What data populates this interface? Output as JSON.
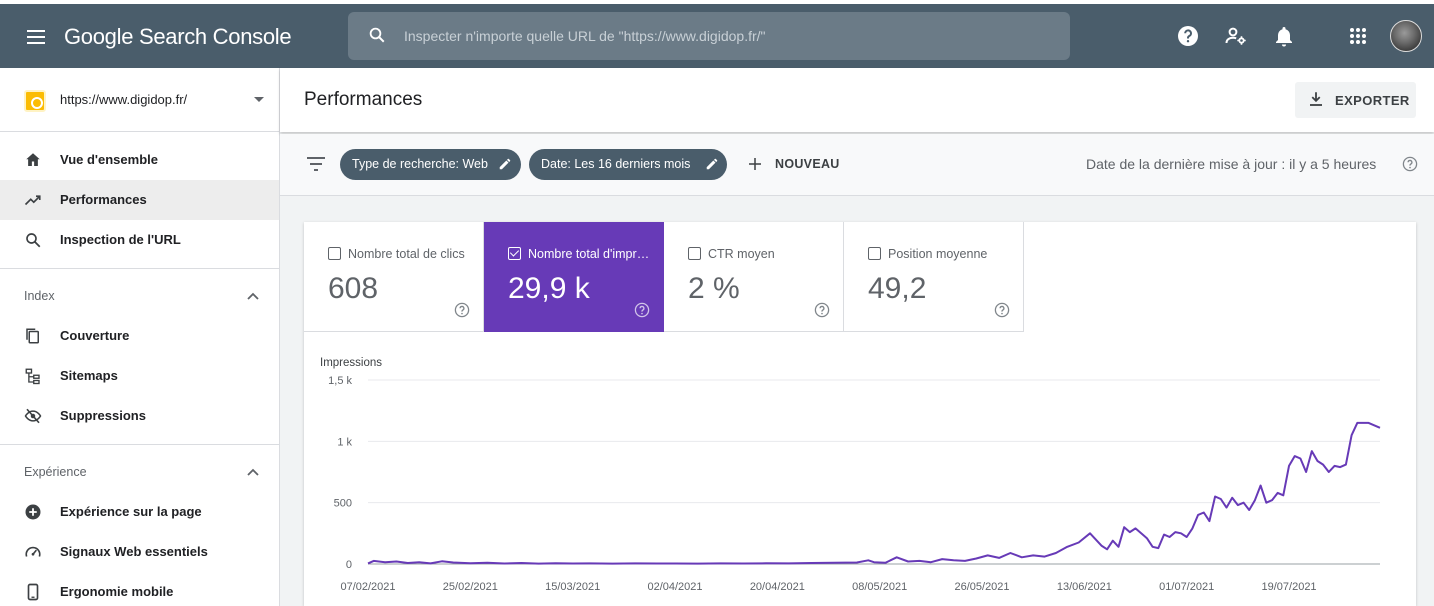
{
  "app": {
    "logo": "Google Search Console"
  },
  "search": {
    "placeholder": "Inspecter n'importe quelle URL de \"https://www.digidop.fr/\""
  },
  "property": {
    "label": "https://www.digidop.fr/"
  },
  "sidebar": {
    "items": [
      {
        "label": "Vue d'ensemble",
        "icon": "home-icon"
      },
      {
        "label": "Performances",
        "icon": "trending-icon"
      },
      {
        "label": "Inspection de l'URL",
        "icon": "search-icon"
      }
    ],
    "index": {
      "title": "Index",
      "items": [
        {
          "label": "Couverture",
          "icon": "pages-icon"
        },
        {
          "label": "Sitemaps",
          "icon": "sitemap-icon"
        },
        {
          "label": "Suppressions",
          "icon": "eye-off-icon"
        }
      ]
    },
    "experience": {
      "title": "Expérience",
      "items": [
        {
          "label": "Expérience sur la page",
          "icon": "plus-circle-icon"
        },
        {
          "label": "Signaux Web essentiels",
          "icon": "speed-icon"
        },
        {
          "label": "Ergonomie mobile",
          "icon": "phone-icon"
        }
      ]
    }
  },
  "header": {
    "title": "Performances",
    "export_label": "EXPORTER"
  },
  "filters": {
    "chips": [
      "Type de recherche: Web",
      "Date: Les 16 derniers mois"
    ],
    "new_label": "NOUVEAU",
    "last_update": "Date de la dernière mise à jour : il y a 5 heures"
  },
  "metrics": [
    {
      "label": "Nombre total de clics",
      "value": "608",
      "selected": false
    },
    {
      "label": "Nombre total d'impressions",
      "value": "29,9 k",
      "selected": true
    },
    {
      "label": "CTR moyen",
      "value": "2 %",
      "selected": false
    },
    {
      "label": "Position moyenne",
      "value": "49,2",
      "selected": false
    }
  ],
  "colors": {
    "topbar": "#4a5d6b",
    "accent": "#673ab7",
    "chip": "#4a5d6b"
  },
  "chart_data": {
    "type": "line",
    "ylabel": "Impressions",
    "y_ticks": [
      "0",
      "500",
      "1 k",
      "1,5 k"
    ],
    "y_tick_values": [
      0,
      500,
      1000,
      1500
    ],
    "ylim": [
      0,
      1500
    ],
    "x_ticks": [
      "07/02/2021",
      "25/02/2021",
      "15/03/2021",
      "02/04/2021",
      "20/04/2021",
      "08/05/2021",
      "26/05/2021",
      "13/06/2021",
      "01/07/2021",
      "19/07/2021"
    ],
    "x_range": [
      "07/02/2021",
      "04/08/2021"
    ],
    "grid": true,
    "series": [
      {
        "color": "#673ab7",
        "points": [
          [
            "07/02/2021",
            5
          ],
          [
            "08/02/2021",
            25
          ],
          [
            "10/02/2021",
            15
          ],
          [
            "12/02/2021",
            20
          ],
          [
            "14/02/2021",
            8
          ],
          [
            "16/02/2021",
            15
          ],
          [
            "18/02/2021",
            5
          ],
          [
            "20/02/2021",
            22
          ],
          [
            "22/02/2021",
            12
          ],
          [
            "25/02/2021",
            6
          ],
          [
            "28/02/2021",
            10
          ],
          [
            "03/03/2021",
            4
          ],
          [
            "06/03/2021",
            8
          ],
          [
            "09/03/2021",
            3
          ],
          [
            "12/03/2021",
            6
          ],
          [
            "15/03/2021",
            4
          ],
          [
            "18/03/2021",
            5
          ],
          [
            "22/03/2021",
            3
          ],
          [
            "26/03/2021",
            5
          ],
          [
            "30/03/2021",
            4
          ],
          [
            "02/04/2021",
            4
          ],
          [
            "06/04/2021",
            3
          ],
          [
            "10/04/2021",
            5
          ],
          [
            "14/04/2021",
            4
          ],
          [
            "18/04/2021",
            6
          ],
          [
            "22/04/2021",
            5
          ],
          [
            "26/04/2021",
            8
          ],
          [
            "30/04/2021",
            10
          ],
          [
            "04/05/2021",
            12
          ],
          [
            "06/05/2021",
            30
          ],
          [
            "07/05/2021",
            15
          ],
          [
            "09/05/2021",
            10
          ],
          [
            "11/05/2021",
            55
          ],
          [
            "13/05/2021",
            20
          ],
          [
            "15/05/2021",
            25
          ],
          [
            "17/05/2021",
            15
          ],
          [
            "19/05/2021",
            40
          ],
          [
            "21/05/2021",
            30
          ],
          [
            "23/05/2021",
            25
          ],
          [
            "25/05/2021",
            45
          ],
          [
            "27/05/2021",
            70
          ],
          [
            "29/05/2021",
            50
          ],
          [
            "31/05/2021",
            90
          ],
          [
            "02/06/2021",
            55
          ],
          [
            "04/06/2021",
            70
          ],
          [
            "06/06/2021",
            60
          ],
          [
            "08/06/2021",
            90
          ],
          [
            "10/06/2021",
            140
          ],
          [
            "12/06/2021",
            175
          ],
          [
            "14/06/2021",
            250
          ],
          [
            "16/06/2021",
            150
          ],
          [
            "17/06/2021",
            120
          ],
          [
            "18/06/2021",
            190
          ],
          [
            "19/06/2021",
            140
          ],
          [
            "20/06/2021",
            300
          ],
          [
            "21/06/2021",
            260
          ],
          [
            "22/06/2021",
            290
          ],
          [
            "24/06/2021",
            210
          ],
          [
            "25/06/2021",
            140
          ],
          [
            "26/06/2021",
            130
          ],
          [
            "27/06/2021",
            240
          ],
          [
            "28/06/2021",
            220
          ],
          [
            "29/06/2021",
            260
          ],
          [
            "30/06/2021",
            250
          ],
          [
            "01/07/2021",
            220
          ],
          [
            "02/07/2021",
            290
          ],
          [
            "03/07/2021",
            400
          ],
          [
            "04/07/2021",
            420
          ],
          [
            "05/07/2021",
            350
          ],
          [
            "06/07/2021",
            550
          ],
          [
            "07/07/2021",
            530
          ],
          [
            "08/07/2021",
            460
          ],
          [
            "09/07/2021",
            540
          ],
          [
            "10/07/2021",
            480
          ],
          [
            "11/07/2021",
            500
          ],
          [
            "12/07/2021",
            440
          ],
          [
            "13/07/2021",
            520
          ],
          [
            "14/07/2021",
            640
          ],
          [
            "15/07/2021",
            500
          ],
          [
            "16/07/2021",
            520
          ],
          [
            "17/07/2021",
            580
          ],
          [
            "18/07/2021",
            560
          ],
          [
            "19/07/2021",
            800
          ],
          [
            "20/07/2021",
            880
          ],
          [
            "21/07/2021",
            860
          ],
          [
            "22/07/2021",
            750
          ],
          [
            "23/07/2021",
            920
          ],
          [
            "24/07/2021",
            840
          ],
          [
            "25/07/2021",
            810
          ],
          [
            "26/07/2021",
            750
          ],
          [
            "27/07/2021",
            800
          ],
          [
            "28/07/2021",
            790
          ],
          [
            "29/07/2021",
            810
          ],
          [
            "30/07/2021",
            1050
          ],
          [
            "31/07/2021",
            1150
          ],
          [
            "02/08/2021",
            1150
          ],
          [
            "04/08/2021",
            1110
          ]
        ]
      }
    ]
  }
}
